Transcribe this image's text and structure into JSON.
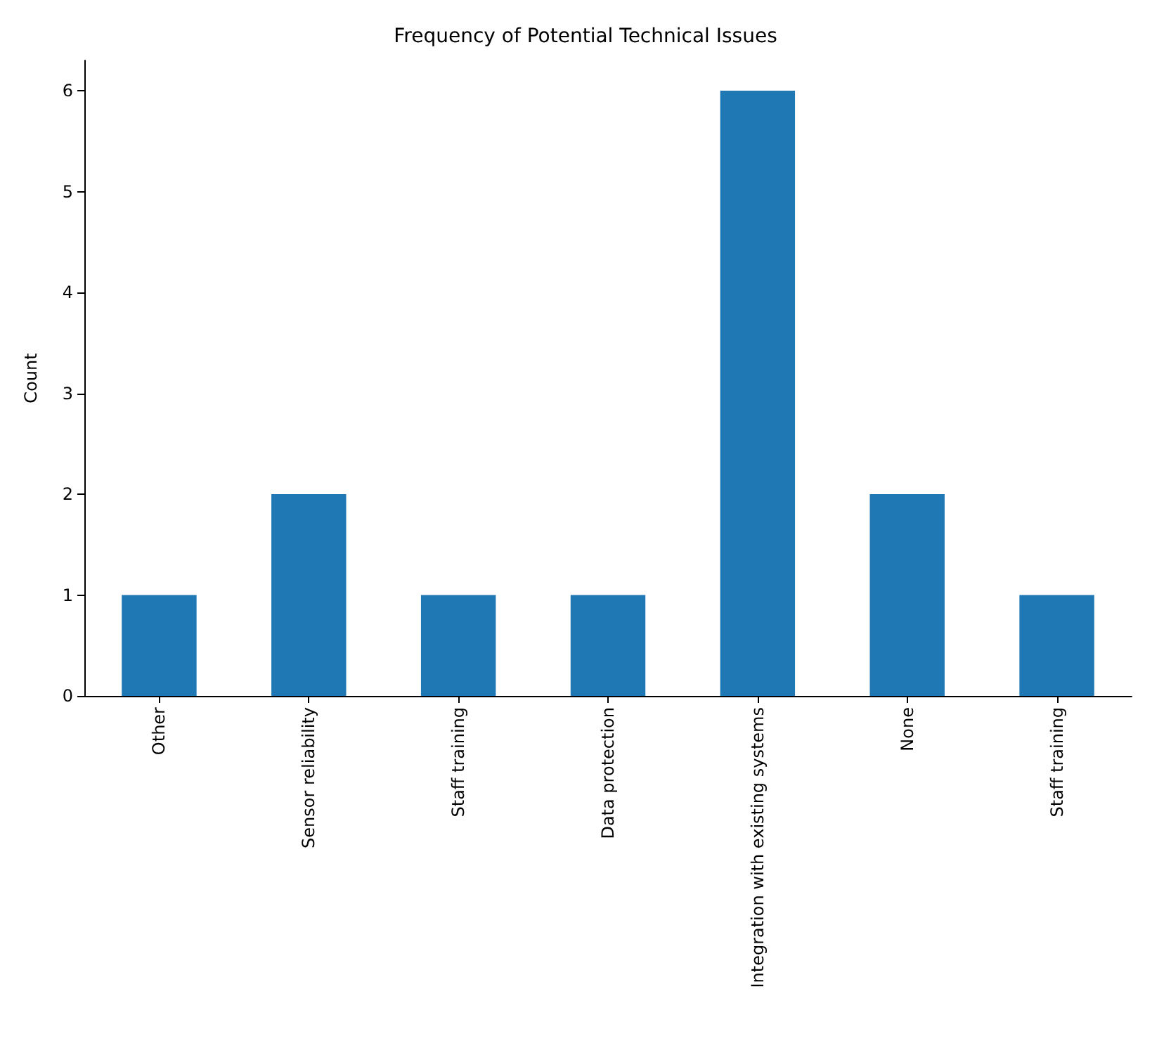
{
  "chart_data": {
    "type": "bar",
    "title": "Frequency of Potential Technical Issues",
    "ylabel": "Count",
    "categories": [
      "Other",
      "Sensor reliability",
      "Staff training",
      "Data protection",
      "Integration with existing systems",
      "None",
      "Staff training"
    ],
    "values": [
      1,
      2,
      1,
      1,
      6,
      2,
      1
    ],
    "color": "#1f77b4",
    "ylim": [
      0,
      6.3
    ],
    "yticks": [
      0,
      1,
      2,
      3,
      4,
      5,
      6
    ],
    "grid": false
  }
}
